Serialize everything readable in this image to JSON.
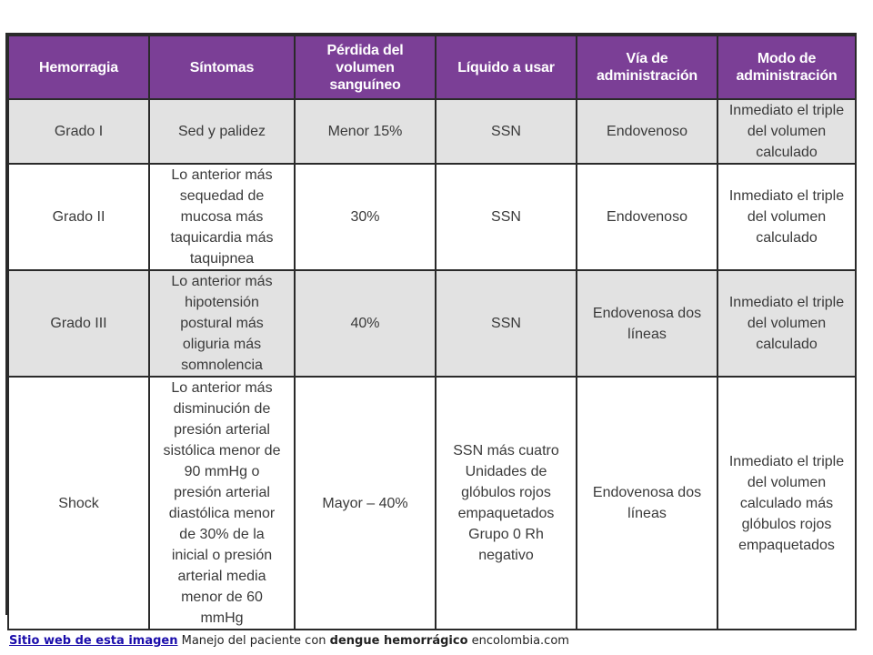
{
  "table": {
    "headers": [
      "Hemorragia",
      "Síntomas",
      "Pérdida del\nvolumen\nsanguíneo",
      "Líquido a usar",
      "Vía de\nadministración",
      "Modo de\nadministración"
    ],
    "rows": [
      [
        "Grado I",
        "Sed y palidez",
        "Menor 15%",
        "SSN",
        "Endovenoso",
        "Inmediato el triple\ndel volumen\ncalculado"
      ],
      [
        "Grado II",
        "Lo anterior más\nsequedad de\nmucosa más\ntaquicardia más\ntaquipnea",
        "30%",
        "SSN",
        "Endovenoso",
        "Inmediato el triple\ndel volumen\ncalculado"
      ],
      [
        "Grado III",
        "Lo anterior más\nhipotensión\npostural más\noliguria más\nsomnolencia",
        "40%",
        "SSN",
        "Endovenosa dos\nlíneas",
        "Inmediato el triple\ndel volumen\ncalculado"
      ],
      [
        "Shock",
        "Lo anterior más\ndisminución de\npresión arterial\nsistólica menor de\n90 mmHg o\npresión arterial\ndiastólica menor\nde 30% de la\ninicial o presión\narterial media\nmenor de 60\nmmHg",
        "Mayor – 40%",
        "SSN más cuatro\nUnidades de\nglóbulos rojos\nempaquetados\nGrupo  0 Rh\nnegativo",
        "Endovenosa dos\nlíneas",
        "Inmediato el triple\ndel volumen\ncalculado más\nglóbulos rojos\nempaquetados"
      ]
    ]
  },
  "caption": {
    "link_text": "Sitio web de esta imagen",
    "text_before_bold": "Manejo del paciente con",
    "bold_text": "dengue hemorrágico",
    "text_after_bold": "encolombia.com"
  },
  "colors": {
    "header_bg": "#7b3f96",
    "shaded_row_bg": "#e2e2e2",
    "border": "#2a2a2a",
    "link": "#1a0dab"
  }
}
